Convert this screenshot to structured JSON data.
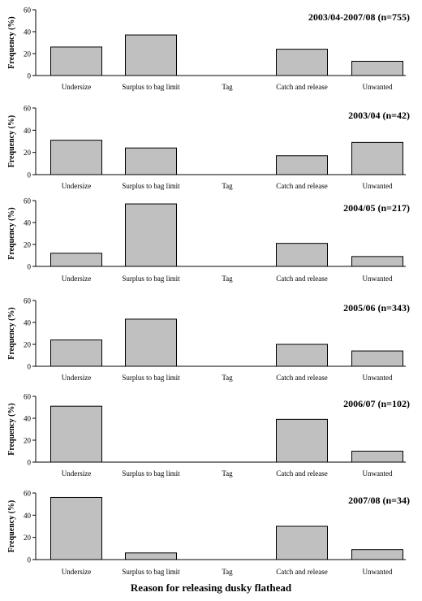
{
  "figure": {
    "xlabel": "Reason for releasing dusky flathead",
    "ylabel": "Frequency (%)",
    "bar_fill": "#c0c0c0",
    "bar_stroke": "#000000"
  },
  "chart_data": [
    {
      "type": "bar",
      "title": "2003/04-2007/08 (n=755)",
      "categories": [
        "Undersize",
        "Surplus to bag limit",
        "Tag",
        "Catch and release",
        "Unwanted"
      ],
      "values": [
        26,
        37,
        0,
        24,
        13
      ],
      "ylabel": "Frequency (%)",
      "ylim": [
        0,
        60
      ],
      "yticks": [
        0,
        20,
        40,
        60
      ],
      "grid": false
    },
    {
      "type": "bar",
      "title": "2003/04 (n=42)",
      "categories": [
        "Undersize",
        "Surplus to bag limit",
        "Tag",
        "Catch and release",
        "Unwanted"
      ],
      "values": [
        31,
        24,
        0,
        17,
        29
      ],
      "ylabel": "Frequency (%)",
      "ylim": [
        0,
        60
      ],
      "yticks": [
        0,
        20,
        40,
        60
      ],
      "grid": false
    },
    {
      "type": "bar",
      "title": "2004/05 (n=217)",
      "categories": [
        "Undersize",
        "Surplus to bag limit",
        "Tag",
        "Catch and release",
        "Unwanted"
      ],
      "values": [
        12,
        57,
        0,
        21,
        9
      ],
      "ylabel": "Frequency (%)",
      "ylim": [
        0,
        60
      ],
      "yticks": [
        0,
        20,
        40,
        60
      ],
      "grid": false
    },
    {
      "type": "bar",
      "title": "2005/06 (n=343)",
      "categories": [
        "Undersize",
        "Surplus to bag limit",
        "Tag",
        "Catch and release",
        "Unwanted"
      ],
      "values": [
        24,
        43,
        0,
        20,
        14
      ],
      "ylabel": "Frequency (%)",
      "ylim": [
        0,
        60
      ],
      "yticks": [
        0,
        20,
        40,
        60
      ],
      "grid": false
    },
    {
      "type": "bar",
      "title": "2006/07 (n=102)",
      "categories": [
        "Undersize",
        "Surplus to bag limit",
        "Tag",
        "Catch and release",
        "Unwanted"
      ],
      "values": [
        51,
        0,
        0,
        39,
        10
      ],
      "ylabel": "Frequency (%)",
      "ylim": [
        0,
        60
      ],
      "yticks": [
        0,
        20,
        40,
        60
      ],
      "grid": false
    },
    {
      "type": "bar",
      "title": "2007/08 (n=34)",
      "categories": [
        "Undersize",
        "Surplus to bag limit",
        "Tag",
        "Catch and release",
        "Unwanted"
      ],
      "values": [
        56,
        6,
        0,
        30,
        9
      ],
      "ylabel": "Frequency (%)",
      "ylim": [
        0,
        60
      ],
      "yticks": [
        0,
        20,
        40,
        60
      ],
      "grid": false
    }
  ]
}
